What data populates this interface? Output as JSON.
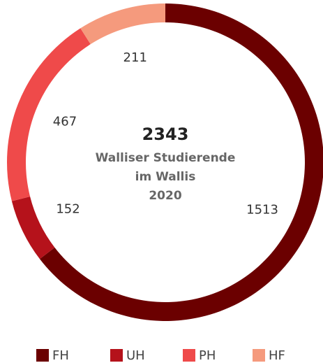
{
  "chart_data": {
    "type": "donut",
    "total": 2343,
    "center_lines": [
      "Walliser Studierende",
      "im Wallis",
      "2020"
    ],
    "categories": [
      "FH",
      "UH",
      "PH",
      "HF"
    ],
    "values": [
      1513,
      152,
      467,
      211
    ],
    "colors": [
      "#6b0000",
      "#b5121b",
      "#ef4a4a",
      "#f59a7d"
    ]
  }
}
